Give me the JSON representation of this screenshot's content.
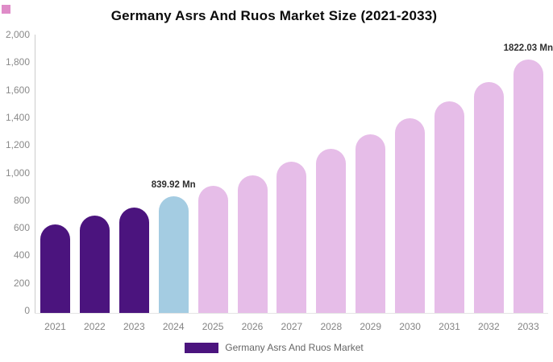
{
  "title": "Germany Asrs And Ruos Market Size (2021-2033)",
  "chart_data": {
    "type": "bar",
    "title": "Germany Asrs And Ruos Market Size (2021-2033)",
    "xlabel": "",
    "ylabel": "",
    "categories": [
      "2021",
      "2022",
      "2023",
      "2024",
      "2025",
      "2026",
      "2027",
      "2028",
      "2029",
      "2030",
      "2031",
      "2032",
      "2033"
    ],
    "series": [
      {
        "name": "Germany Asrs And Ruos Market",
        "unit": "Mn",
        "values": [
          635,
          700,
          760,
          839.92,
          915,
          990,
          1085,
          1180,
          1285,
          1400,
          1520,
          1660,
          1822.03
        ]
      }
    ],
    "ylim": [
      0,
      2000
    ],
    "y_tick_step": 200,
    "y_tick_labels": [
      "0",
      "200",
      "400",
      "600",
      "800",
      "1,000",
      "1,200",
      "1,400",
      "1,600",
      "1,800",
      "2,000"
    ],
    "grid": false,
    "legend_position": "bottom",
    "bar_colors": [
      "#4b147e",
      "#4b147e",
      "#4b147e",
      "#a4cce2",
      "#e6bde8",
      "#e6bde8",
      "#e6bde8",
      "#e6bde8",
      "#e6bde8",
      "#e6bde8",
      "#e6bde8",
      "#e6bde8",
      "#e6bde8"
    ],
    "annotations": [
      {
        "category": "2024",
        "text": "839.92 Mn"
      },
      {
        "category": "2033",
        "text": "1822.03 Mn"
      }
    ]
  },
  "legend": {
    "label": "Germany Asrs And Ruos Market",
    "swatch_color": "#4b147e"
  },
  "colors": {
    "historical_bar": "#4b147e",
    "current_bar": "#a4cce2",
    "forecast_bar": "#e6bde8",
    "axis_text": "#8a8a8a",
    "corner_square": "#df8cc8"
  }
}
